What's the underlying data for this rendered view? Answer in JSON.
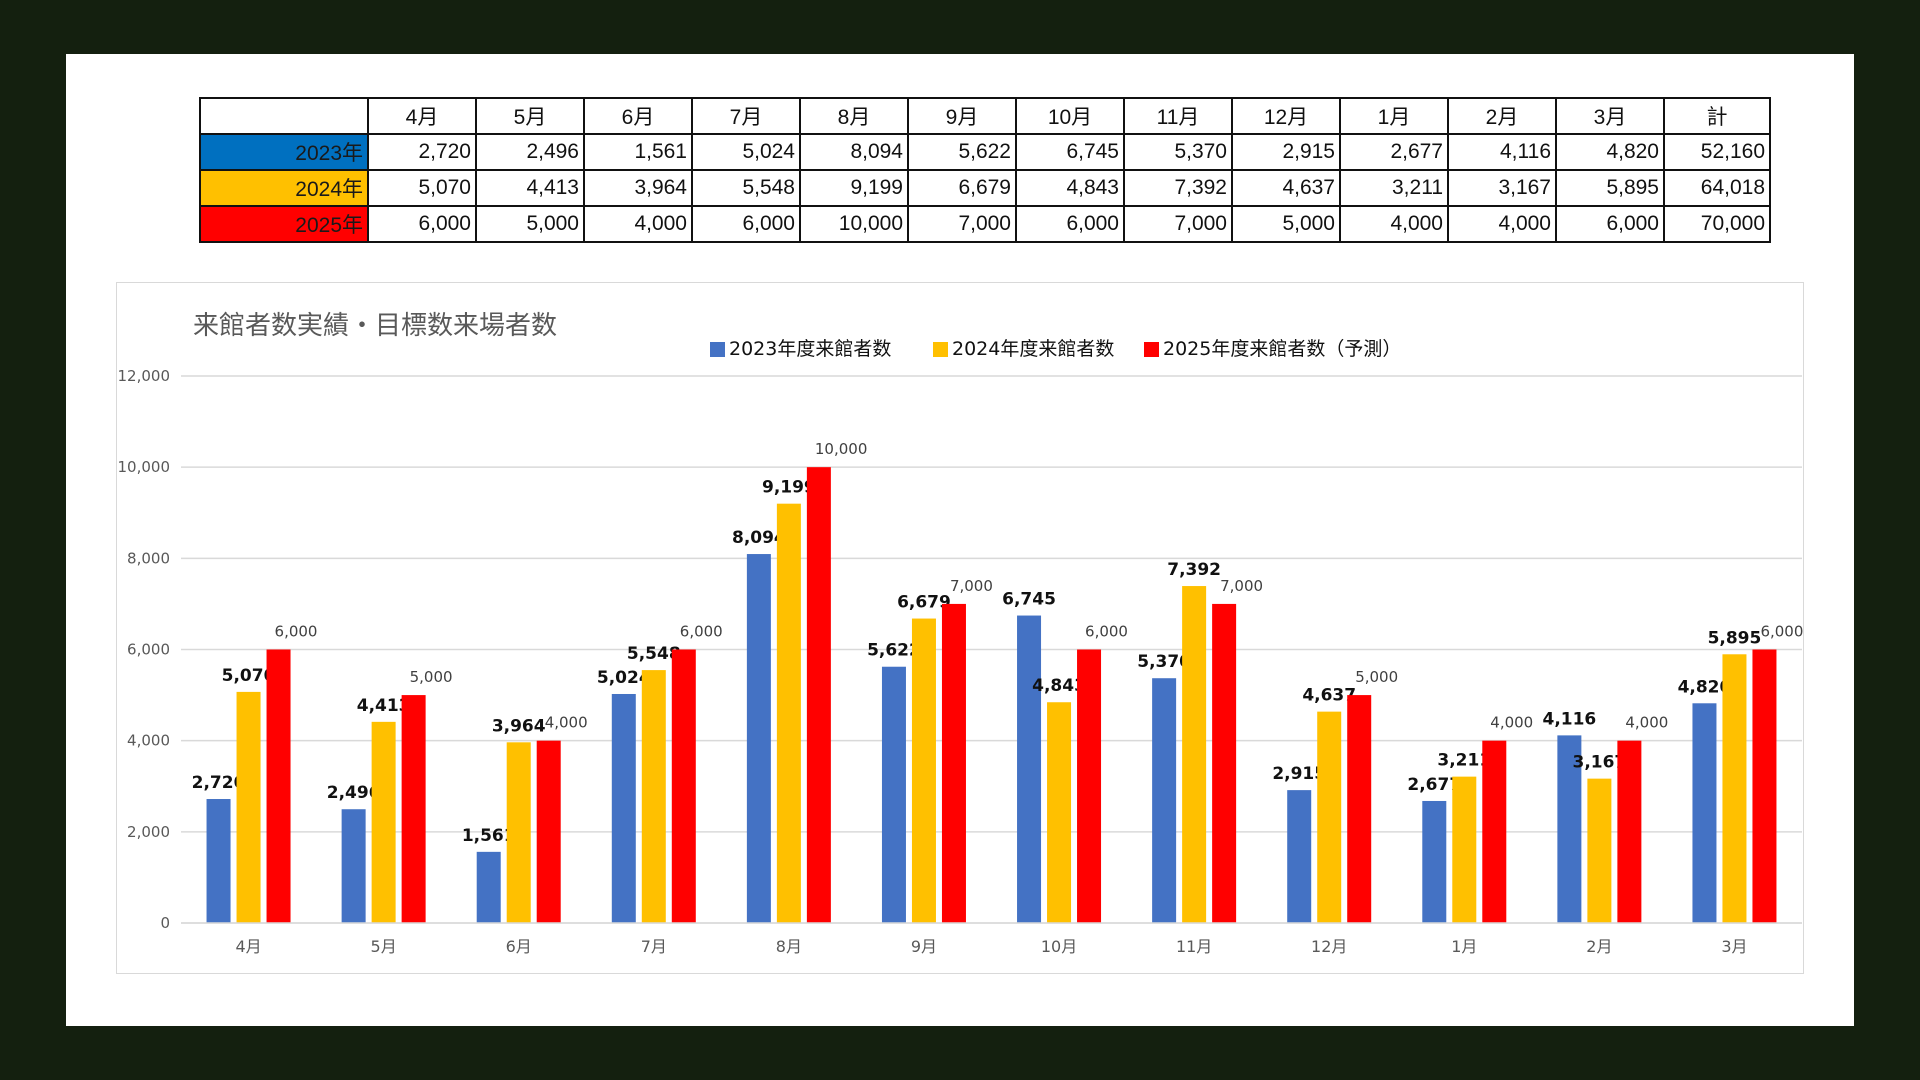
{
  "table": {
    "headers": [
      "",
      "4月",
      "5月",
      "6月",
      "7月",
      "8月",
      "9月",
      "10月",
      "11月",
      "12月",
      "1月",
      "2月",
      "3月",
      "計"
    ],
    "rows": [
      {
        "label": "2023年",
        "color": "#0070c0",
        "cells": [
          "2,720",
          "2,496",
          "1,561",
          "5,024",
          "8,094",
          "5,622",
          "6,745",
          "5,370",
          "2,915",
          "2,677",
          "4,116",
          "4,820",
          "52,160"
        ]
      },
      {
        "label": "2024年",
        "color": "#ffc000",
        "cells": [
          "5,070",
          "4,413",
          "3,964",
          "5,548",
          "9,199",
          "6,679",
          "4,843",
          "7,392",
          "4,637",
          "3,211",
          "3,167",
          "5,895",
          "64,018"
        ]
      },
      {
        "label": "2025年",
        "color": "#ff0000",
        "cells": [
          "6,000",
          "5,000",
          "4,000",
          "6,000",
          "10,000",
          "7,000",
          "6,000",
          "7,000",
          "5,000",
          "4,000",
          "4,000",
          "6,000",
          "70,000"
        ]
      }
    ]
  },
  "chart_data": {
    "type": "bar",
    "title": "来館者数実績・目標数来場者数",
    "xlabel": "",
    "ylabel": "",
    "ylim": [
      0,
      12000
    ],
    "yticks": [
      0,
      2000,
      4000,
      6000,
      8000,
      10000,
      12000
    ],
    "ytick_labels": [
      "0",
      "2,000",
      "4,000",
      "6,000",
      "8,000",
      "10,000",
      "12,000"
    ],
    "grid": true,
    "legend_position": "top-center",
    "categories": [
      "4月",
      "5月",
      "6月",
      "7月",
      "8月",
      "9月",
      "10月",
      "11月",
      "12月",
      "1月",
      "2月",
      "3月"
    ],
    "series": [
      {
        "name": "2023年度来館者数",
        "color": "#4472c4",
        "values": [
          2720,
          2496,
          1561,
          5024,
          8094,
          5622,
          6745,
          5370,
          2915,
          2677,
          4116,
          4820
        ],
        "labels": [
          "2,720",
          "2,496",
          "1,561",
          "5,024",
          "8,094",
          "5,622",
          "6,745",
          "5,370",
          "2,915",
          "2,677",
          "4,116",
          "4,820"
        ]
      },
      {
        "name": "2024年度来館者数",
        "color": "#ffc000",
        "values": [
          5070,
          4413,
          3964,
          5548,
          9199,
          6679,
          4843,
          7392,
          4637,
          3211,
          3167,
          5895
        ],
        "labels": [
          "5,070",
          "4,413",
          "3,964",
          "5,548",
          "9,199",
          "6,679",
          "4,843",
          "7,392",
          "4,637",
          "3,211",
          "3,167",
          "5,895"
        ]
      },
      {
        "name": "2025年度来館者数（予測）",
        "color": "#ff0000",
        "values": [
          6000,
          5000,
          4000,
          6000,
          10000,
          7000,
          6000,
          7000,
          5000,
          4000,
          4000,
          6000
        ],
        "labels": [
          "6,000",
          "5,000",
          "4,000",
          "6,000",
          "10,000",
          "7,000",
          "6,000",
          "7,000",
          "5,000",
          "4,000",
          "4,000",
          "6,000"
        ]
      }
    ]
  }
}
